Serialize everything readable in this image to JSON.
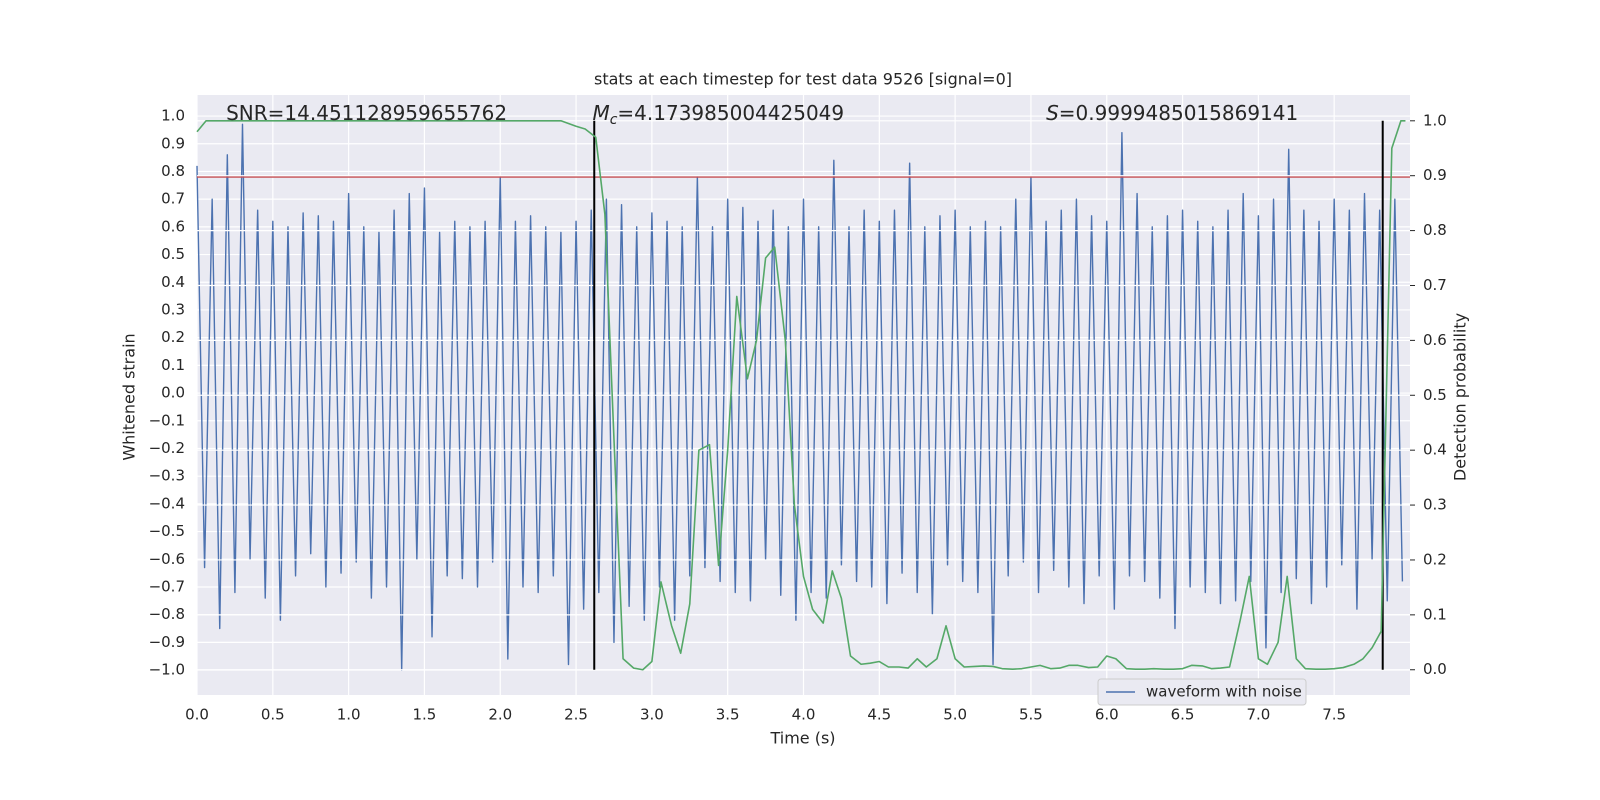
{
  "chart_data": {
    "type": "line",
    "title": "stats at each timestep for test data 9526 [signal=0]",
    "xlabel": "Time (s)",
    "ylabel": "Whitened strain",
    "y2label": "Detection probability",
    "xlim": [
      0,
      8.0
    ],
    "ylim": [
      -1.09,
      1.076
    ],
    "y2lim": [
      -0.046,
      1.047
    ],
    "xticks": [
      {
        "value": 0,
        "label": "0.0"
      },
      0.5,
      {
        "value": 1,
        "label": "1.0"
      },
      1.5,
      {
        "value": 2,
        "label": "2.0"
      },
      2.5,
      {
        "value": 3,
        "label": "3.0"
      },
      3.5,
      {
        "value": 4,
        "label": "4.0"
      },
      4.5,
      {
        "value": 5,
        "label": "5.0"
      },
      5.5,
      {
        "value": 6,
        "label": "6.0"
      },
      6.5,
      {
        "value": 7,
        "label": "7.0"
      },
      7.5
    ],
    "yticks": [
      {
        "value": -1,
        "label": "−1.0"
      },
      {
        "value": -0.9,
        "label": "−0.9"
      },
      {
        "value": -0.8,
        "label": "−0.8"
      },
      {
        "value": -0.7,
        "label": "−0.7"
      },
      {
        "value": -0.6,
        "label": "−0.6"
      },
      {
        "value": -0.5,
        "label": "−0.5"
      },
      {
        "value": -0.4,
        "label": "−0.4"
      },
      {
        "value": -0.3,
        "label": "−0.3"
      },
      {
        "value": -0.2,
        "label": "−0.2"
      },
      {
        "value": -0.1,
        "label": "−0.1"
      },
      {
        "value": 0,
        "label": "0.0"
      },
      0.1,
      0.2,
      0.3,
      0.4,
      0.5,
      0.6,
      0.7,
      0.8,
      0.9,
      {
        "value": 1,
        "label": "1.0"
      }
    ],
    "y2ticks": [
      {
        "value": 0,
        "label": "0.0"
      },
      0.1,
      0.2,
      0.3,
      0.4,
      0.5,
      0.6,
      0.7,
      0.8,
      0.9,
      {
        "value": 1,
        "label": "1.0"
      }
    ],
    "grid": true,
    "legend": "lower right",
    "series": [
      {
        "name": "waveform with noise",
        "color": "#4c72b0",
        "x": [
          0,
          0.05,
          0.1,
          0.15,
          0.2,
          0.25,
          0.3,
          0.35,
          0.4,
          0.45,
          0.5,
          0.55,
          0.6,
          0.65,
          0.7,
          0.75,
          0.8,
          0.85,
          0.9,
          0.95,
          1,
          1.05,
          1.1,
          1.15,
          1.2,
          1.25,
          1.3,
          1.35,
          1.4,
          1.45,
          1.5,
          1.55,
          1.6,
          1.65,
          1.7,
          1.75,
          1.8,
          1.85,
          1.9,
          1.95,
          2,
          2.05,
          2.1,
          2.15,
          2.2,
          2.25,
          2.3,
          2.35,
          2.4,
          2.45,
          2.5,
          2.55,
          2.6,
          2.65,
          2.7,
          2.75,
          2.8,
          2.85,
          2.9,
          2.95,
          3,
          3.05,
          3.1,
          3.15,
          3.2,
          3.25,
          3.3,
          3.35,
          3.4,
          3.45,
          3.5,
          3.55,
          3.6,
          3.65,
          3.7,
          3.75,
          3.8,
          3.85,
          3.9,
          3.95,
          4,
          4.05,
          4.1,
          4.15,
          4.2,
          4.25,
          4.3,
          4.35,
          4.4,
          4.45,
          4.5,
          4.55,
          4.6,
          4.65,
          4.7,
          4.75,
          4.8,
          4.85,
          4.9,
          4.95,
          5,
          5.05,
          5.1,
          5.15,
          5.2,
          5.25,
          5.3,
          5.35,
          5.4,
          5.45,
          5.5,
          5.55,
          5.6,
          5.65,
          5.7,
          5.75,
          5.8,
          5.85,
          5.9,
          5.95,
          6,
          6.05,
          6.1,
          6.15,
          6.2,
          6.25,
          6.3,
          6.35,
          6.4,
          6.45,
          6.5,
          6.55,
          6.6,
          6.65,
          6.7,
          6.75,
          6.8,
          6.85,
          6.9,
          6.95,
          7,
          7.05,
          7.1,
          7.15,
          7.2,
          7.25,
          7.3,
          7.35,
          7.4,
          7.45,
          7.5,
          7.55,
          7.6,
          7.65,
          7.7,
          7.75,
          7.8,
          7.85,
          7.9,
          7.95
        ],
        "values": [
          0.82,
          -0.63,
          0.7,
          -0.85,
          0.86,
          -0.72,
          0.97,
          -0.6,
          0.66,
          -0.74,
          0.62,
          -0.82,
          0.6,
          -0.66,
          0.65,
          -0.58,
          0.64,
          -0.7,
          0.62,
          -0.65,
          0.72,
          -0.61,
          0.6,
          -0.74,
          0.58,
          -0.7,
          0.66,
          -1.0,
          0.72,
          -0.6,
          0.74,
          -0.88,
          0.58,
          -0.66,
          0.62,
          -0.67,
          0.6,
          -0.7,
          0.62,
          -0.61,
          0.78,
          -0.96,
          0.62,
          -0.7,
          0.64,
          -0.72,
          0.6,
          -0.66,
          0.58,
          -0.98,
          0.62,
          -0.78,
          0.66,
          -0.72,
          0.7,
          -0.9,
          0.68,
          -0.77,
          0.6,
          -0.82,
          0.65,
          -0.7,
          0.62,
          -0.82,
          0.6,
          -0.66,
          0.78,
          -0.63,
          0.6,
          -0.68,
          0.7,
          -0.72,
          0.67,
          -0.75,
          0.62,
          -0.6,
          0.66,
          -0.73,
          0.6,
          -0.82,
          0.7,
          -0.72,
          0.6,
          -0.74,
          0.84,
          -0.62,
          0.6,
          -0.68,
          0.66,
          -0.7,
          0.62,
          -0.76,
          0.66,
          -0.65,
          0.83,
          -0.72,
          0.6,
          -0.8,
          0.64,
          -0.62,
          0.66,
          -0.68,
          0.6,
          -0.72,
          0.62,
          -0.98,
          0.6,
          -0.66,
          0.7,
          -0.61,
          0.78,
          -0.72,
          0.62,
          -0.64,
          0.66,
          -0.7,
          0.7,
          -0.76,
          0.64,
          -0.66,
          0.62,
          -0.78,
          0.94,
          -0.66,
          0.72,
          -0.68,
          0.6,
          -0.74,
          0.64,
          -0.85,
          0.66,
          -0.7,
          0.62,
          -0.72,
          0.6,
          -0.76,
          0.66,
          -0.75,
          0.72,
          -0.68,
          0.64,
          -0.92,
          0.7,
          -0.72,
          0.88,
          -0.67,
          0.66,
          -0.76,
          0.62,
          -0.7,
          0.7,
          -0.62,
          0.66,
          -0.78,
          0.72,
          -0.6,
          0.66,
          -0.75,
          0.7,
          -0.68
        ]
      },
      {
        "color": "#55a868",
        "axis": "y2",
        "x": [
          0,
          0.06,
          2.4,
          2.5,
          2.56,
          2.63,
          2.69,
          2.75,
          2.81,
          2.88,
          2.94,
          3.0,
          3.06,
          3.13,
          3.19,
          3.25,
          3.31,
          3.38,
          3.44,
          3.5,
          3.56,
          3.63,
          3.69,
          3.75,
          3.81,
          3.88,
          3.94,
          4.0,
          4.06,
          4.13,
          4.19,
          4.25,
          4.31,
          4.38,
          4.44,
          4.5,
          4.56,
          4.63,
          4.69,
          4.75,
          4.81,
          4.88,
          4.94,
          5.0,
          5.06,
          5.13,
          5.19,
          5.25,
          5.31,
          5.38,
          5.44,
          5.5,
          5.56,
          5.63,
          5.69,
          5.75,
          5.81,
          5.88,
          5.94,
          6.0,
          6.06,
          6.13,
          6.19,
          6.25,
          6.31,
          6.38,
          6.44,
          6.5,
          6.56,
          6.63,
          6.69,
          6.75,
          6.81,
          6.88,
          6.94,
          7.0,
          7.06,
          7.13,
          7.19,
          7.25,
          7.31,
          7.38,
          7.44,
          7.5,
          7.56,
          7.63,
          7.69,
          7.75,
          7.81,
          7.88,
          7.94,
          7.97
        ],
        "values": [
          0.98,
          1.0,
          1.0,
          0.99,
          0.985,
          0.97,
          0.83,
          0.42,
          0.02,
          0.003,
          0.0,
          0.015,
          0.16,
          0.08,
          0.03,
          0.12,
          0.4,
          0.41,
          0.19,
          0.4,
          0.68,
          0.53,
          0.6,
          0.75,
          0.77,
          0.6,
          0.3,
          0.17,
          0.11,
          0.085,
          0.18,
          0.13,
          0.025,
          0.01,
          0.012,
          0.015,
          0.005,
          0.005,
          0.003,
          0.02,
          0.005,
          0.02,
          0.08,
          0.02,
          0.005,
          0.006,
          0.007,
          0.006,
          0.002,
          0.001,
          0.002,
          0.005,
          0.008,
          0.002,
          0.003,
          0.008,
          0.008,
          0.004,
          0.005,
          0.025,
          0.02,
          0.002,
          0.001,
          0.001,
          0.002,
          0.001,
          0.001,
          0.002,
          0.008,
          0.007,
          0.002,
          0.003,
          0.005,
          0.09,
          0.17,
          0.02,
          0.01,
          0.05,
          0.17,
          0.02,
          0.002,
          0.001,
          0.001,
          0.002,
          0.004,
          0.01,
          0.02,
          0.04,
          0.07,
          0.95,
          1.0,
          1.0
        ]
      }
    ],
    "hlines": [
      {
        "y": 0.78,
        "color": "#c44e52"
      }
    ],
    "vlines": [
      {
        "x": 2.62,
        "color": "#000000"
      },
      {
        "x": 7.82,
        "color": "#000000"
      }
    ],
    "annotations": [
      {
        "text": "SNR=14.451128959655762"
      },
      {
        "symbol": "M",
        "sub": "c",
        "text": "=4.173985004425049"
      },
      {
        "symbol": "S",
        "text": "=0.9999485015869141"
      }
    ]
  }
}
